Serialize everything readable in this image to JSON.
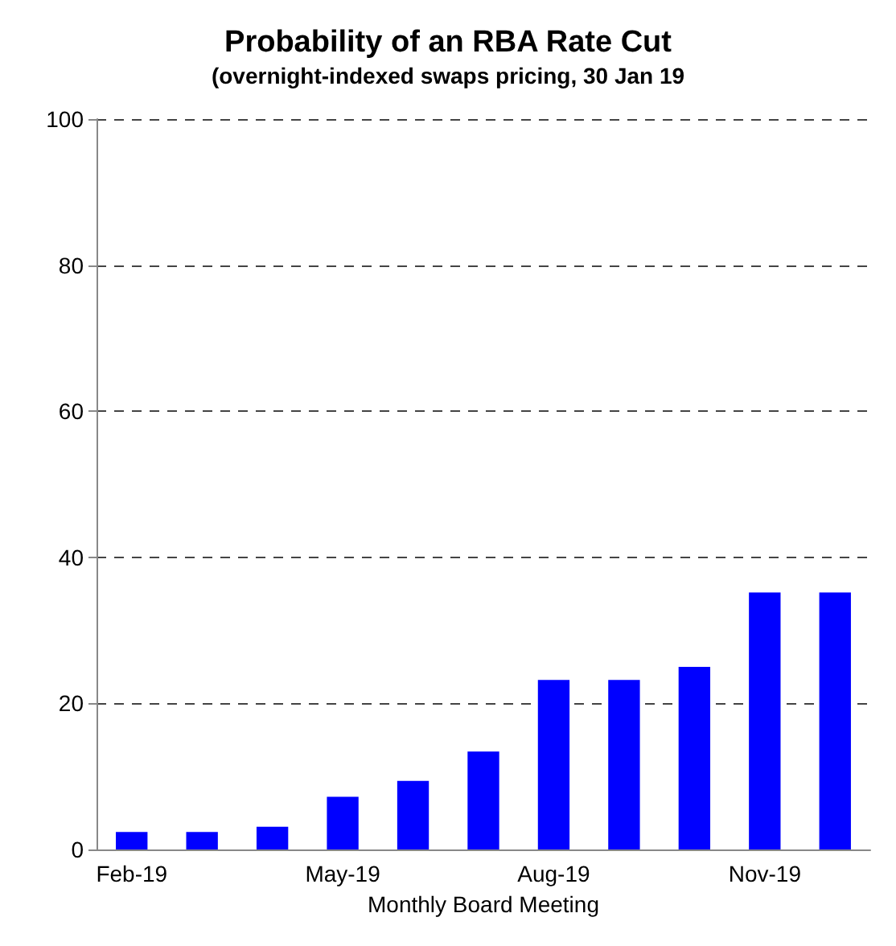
{
  "chart_data": {
    "type": "bar",
    "title": "Probability of an RBA Rate Cut",
    "subtitle": "(overnight-indexed swaps pricing, 30 Jan 19",
    "xlabel": "Monthly Board Meeting",
    "categories": [
      "Feb-19",
      null,
      null,
      "May-19",
      null,
      null,
      "Aug-19",
      null,
      null,
      "Nov-19",
      null
    ],
    "values": [
      2.4,
      2.4,
      3.1,
      7.2,
      9.4,
      13.4,
      23.2,
      23.2,
      25.0,
      35.2,
      35.2
    ],
    "color": "#0000ff",
    "ylim": [
      0,
      100
    ],
    "yticks": [
      0,
      20,
      40,
      60,
      80,
      100
    ],
    "grid": "y"
  }
}
